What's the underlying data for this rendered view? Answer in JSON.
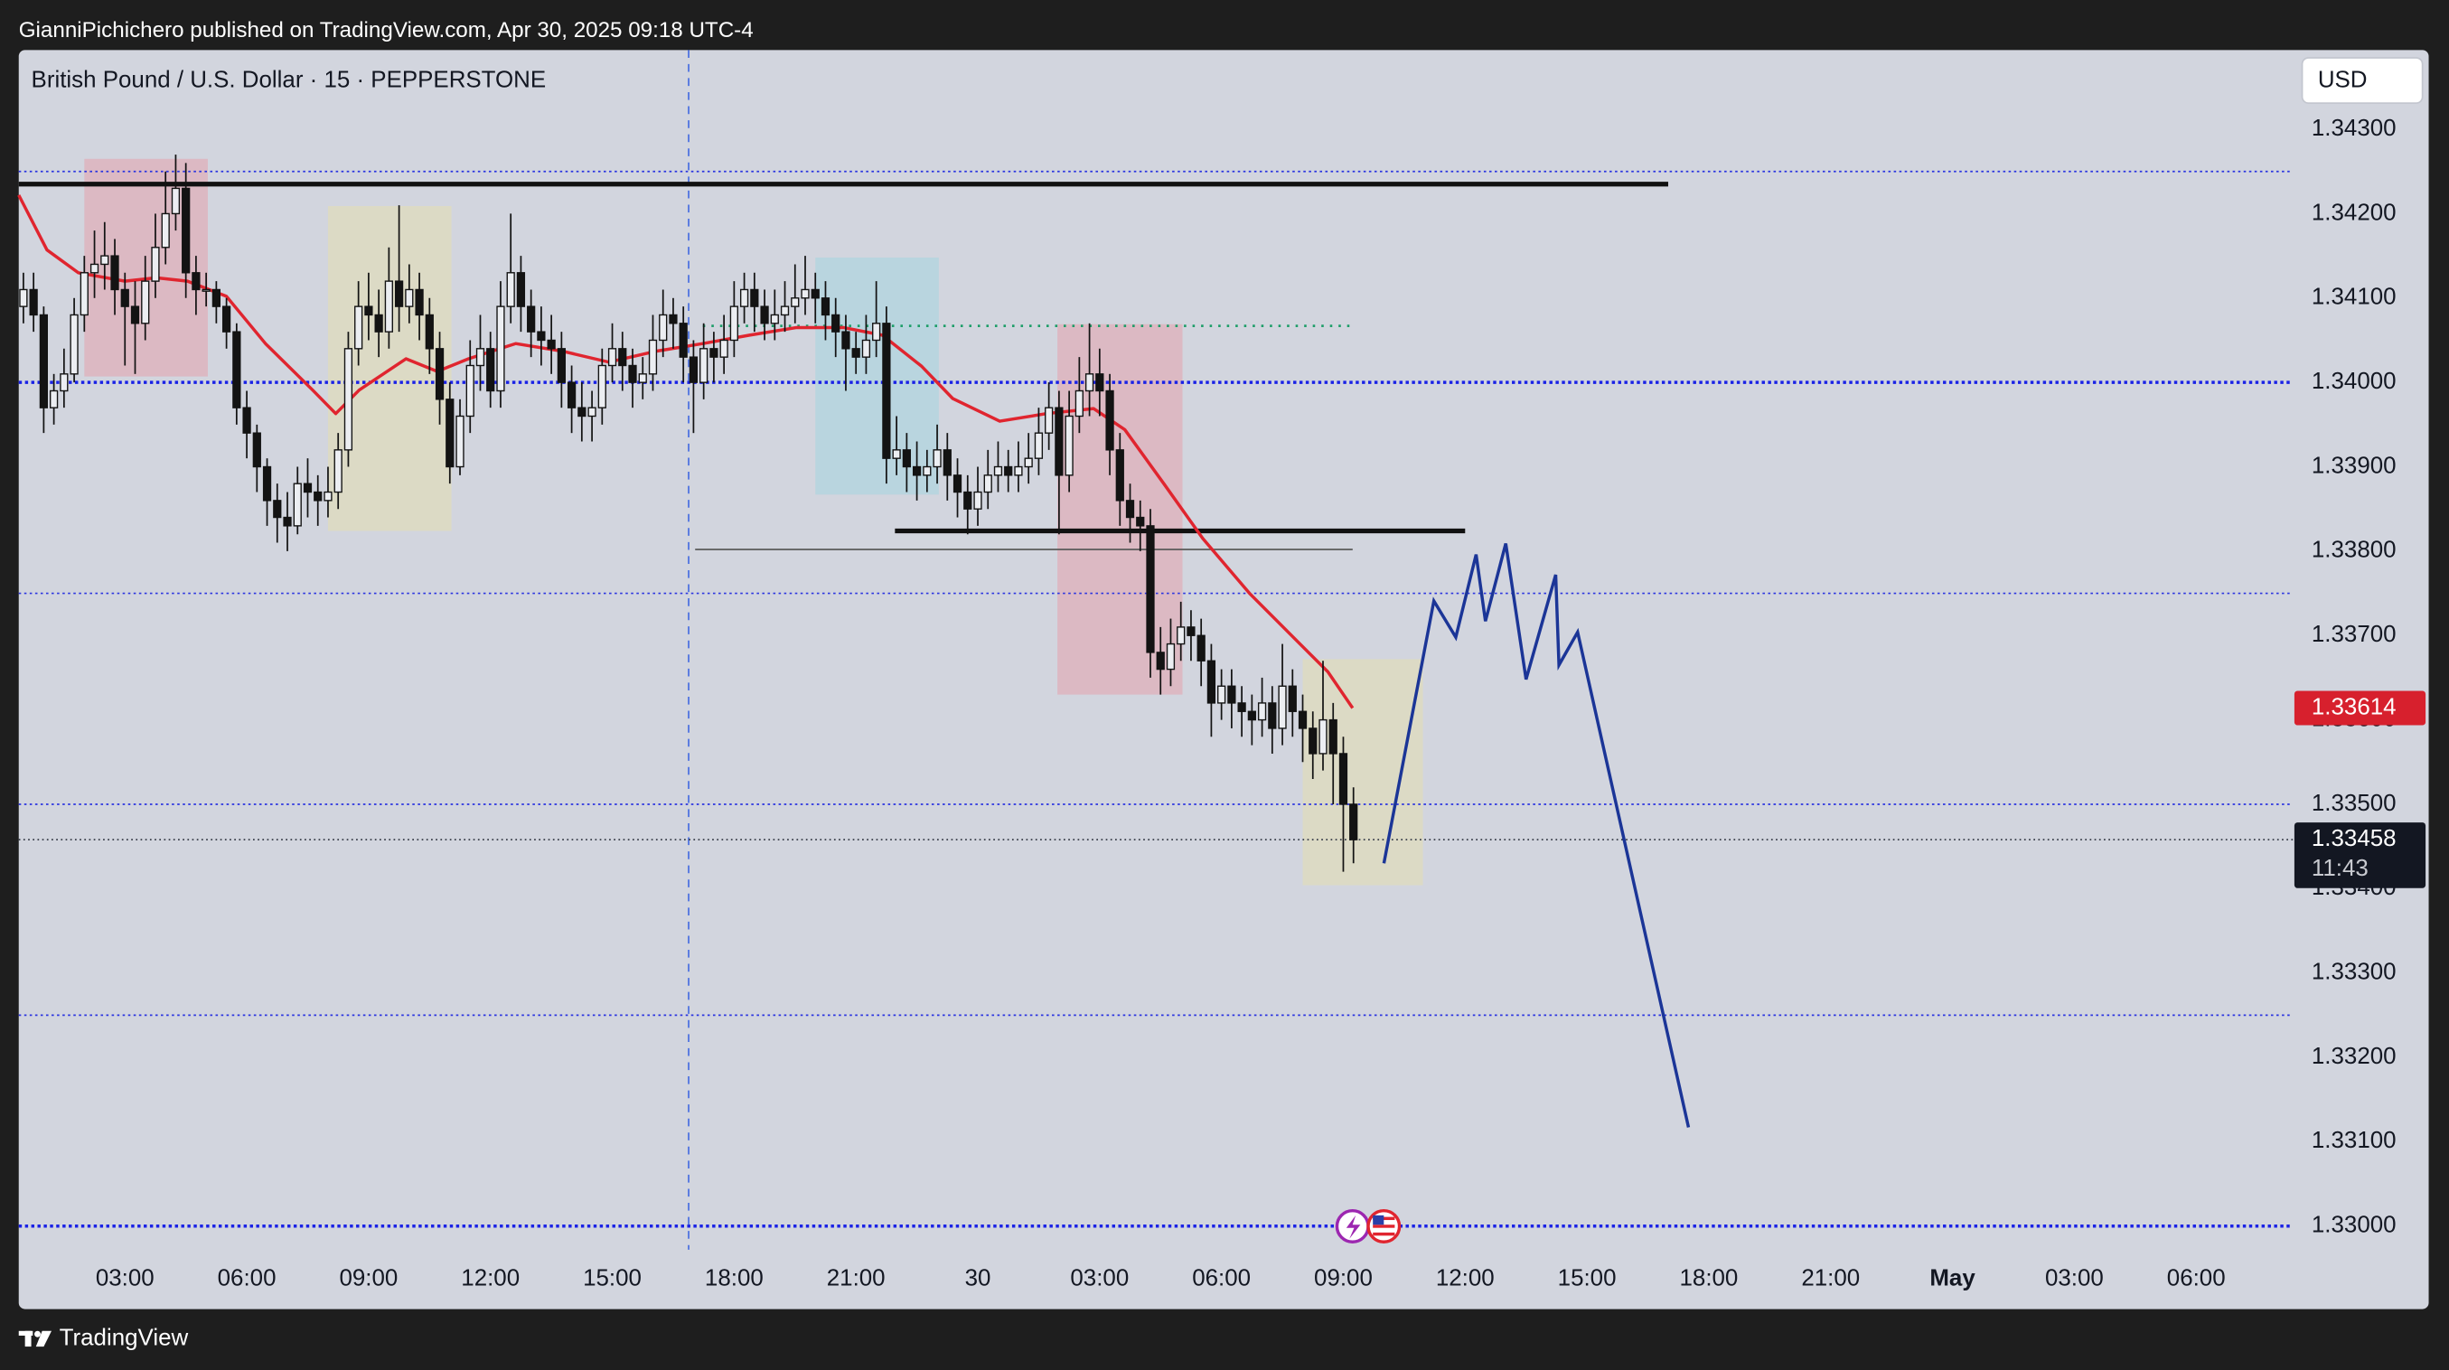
{
  "header": {
    "text": "GianniPichichero published on TradingView.com, Apr 30, 2025 09:18 UTC-4"
  },
  "footer": {
    "brand": "TradingView"
  },
  "chart_data": {
    "type": "candlestick",
    "title": "British Pound / U.S. Dollar · 15 · PEPPERSTONE",
    "currency": "USD",
    "countdown": "11:43",
    "xlim": [
      0.385,
      56.38
    ],
    "ylim": [
      1.32972,
      1.34394
    ],
    "grid": false,
    "xticks": [
      {
        "value": 3,
        "label": "03:00"
      },
      {
        "value": 6,
        "label": "06:00"
      },
      {
        "value": 9,
        "label": "09:00"
      },
      {
        "value": 12,
        "label": "12:00"
      },
      {
        "value": 15,
        "label": "15:00"
      },
      {
        "value": 18,
        "label": "18:00"
      },
      {
        "value": 21,
        "label": "21:00"
      },
      {
        "value": 24,
        "label": "30"
      },
      {
        "value": 27,
        "label": "03:00"
      },
      {
        "value": 30,
        "label": "06:00"
      },
      {
        "value": 33,
        "label": "09:00"
      },
      {
        "value": 36,
        "label": "12:00"
      },
      {
        "value": 39,
        "label": "15:00"
      },
      {
        "value": 42,
        "label": "18:00"
      },
      {
        "value": 45,
        "label": "21:00"
      },
      {
        "value": 48,
        "label": "May"
      },
      {
        "value": 51,
        "label": "03:00"
      },
      {
        "value": 54,
        "label": "06:00"
      }
    ],
    "yticks": [
      {
        "value": 1.33,
        "label": "1.33000"
      },
      {
        "value": 1.331,
        "label": "1.33100"
      },
      {
        "value": 1.332,
        "label": "1.33200"
      },
      {
        "value": 1.333,
        "label": "1.33300"
      },
      {
        "value": 1.334,
        "label": "1.33400"
      },
      {
        "value": 1.335,
        "label": "1.33500"
      },
      {
        "value": 1.336,
        "label": "1.33600"
      },
      {
        "value": 1.337,
        "label": "1.33700"
      },
      {
        "value": 1.338,
        "label": "1.33800"
      },
      {
        "value": 1.339,
        "label": "1.33900"
      },
      {
        "value": 1.34,
        "label": "1.34000"
      },
      {
        "value": 1.341,
        "label": "1.34100"
      },
      {
        "value": 1.342,
        "label": "1.34200"
      },
      {
        "value": 1.343,
        "label": "1.34300"
      }
    ],
    "up_color": "#eceef2",
    "down_color": "#131313",
    "x": [
      0.5,
      0.75,
      1,
      1.25,
      1.5,
      1.75,
      2,
      2.25,
      2.5,
      2.75,
      3,
      3.25,
      3.5,
      3.75,
      4,
      4.25,
      4.5,
      4.75,
      5,
      5.25,
      5.5,
      5.75,
      6,
      6.25,
      6.5,
      6.75,
      7,
      7.25,
      7.5,
      7.75,
      8,
      8.25,
      8.5,
      8.75,
      9,
      9.25,
      9.5,
      9.75,
      10,
      10.25,
      10.5,
      10.75,
      11,
      11.25,
      11.5,
      11.75,
      12,
      12.25,
      12.5,
      12.75,
      13,
      13.25,
      13.5,
      13.75,
      14,
      14.25,
      14.5,
      14.75,
      15,
      15.25,
      15.5,
      15.75,
      16,
      16.25,
      16.5,
      16.75,
      17,
      17.25,
      17.5,
      17.75,
      18,
      18.25,
      18.5,
      18.75,
      19,
      19.25,
      19.5,
      19.75,
      20,
      20.25,
      20.5,
      20.75,
      21,
      21.25,
      21.5,
      21.75,
      22,
      22.25,
      22.5,
      22.75,
      23,
      23.25,
      23.5,
      23.75,
      24,
      24.25,
      24.5,
      24.75,
      25,
      25.25,
      25.5,
      25.75,
      26,
      26.25,
      26.5,
      26.75,
      27,
      27.25,
      27.5,
      27.75,
      28,
      28.25,
      28.5,
      28.75,
      29,
      29.25,
      29.5,
      29.75,
      30,
      30.25,
      30.5,
      30.75,
      31,
      31.25,
      31.5,
      31.75,
      32,
      32.25,
      32.5,
      32.75,
      33,
      33.25
    ],
    "open": [
      1.3409,
      1.3411,
      1.3408,
      1.3397,
      1.3399,
      1.3401,
      1.3408,
      1.3413,
      1.3414,
      1.3415,
      1.3411,
      1.3409,
      1.3407,
      1.3412,
      1.3416,
      1.342,
      1.3423,
      1.3413,
      1.3411,
      1.3411,
      1.3409,
      1.3406,
      1.3397,
      1.3394,
      1.339,
      1.3386,
      1.3384,
      1.3383,
      1.3388,
      1.3387,
      1.3386,
      1.3387,
      1.3392,
      1.3404,
      1.3409,
      1.3408,
      1.3406,
      1.3412,
      1.3409,
      1.3411,
      1.3408,
      1.3404,
      1.3398,
      1.339,
      1.3396,
      1.3402,
      1.3404,
      1.3399,
      1.3409,
      1.3413,
      1.3409,
      1.3406,
      1.3405,
      1.3404,
      1.34,
      1.3397,
      1.3396,
      1.3397,
      1.3402,
      1.3404,
      1.3402,
      1.34,
      1.3401,
      1.3405,
      1.3408,
      1.3407,
      1.3403,
      1.34,
      1.3404,
      1.3403,
      1.3405,
      1.3409,
      1.3411,
      1.3409,
      1.3407,
      1.3408,
      1.3409,
      1.341,
      1.3411,
      1.341,
      1.3408,
      1.3406,
      1.3404,
      1.3403,
      1.3405,
      1.3407,
      1.3391,
      1.3392,
      1.339,
      1.3389,
      1.339,
      1.3392,
      1.3389,
      1.3387,
      1.3385,
      1.3387,
      1.3389,
      1.339,
      1.3389,
      1.339,
      1.3391,
      1.3394,
      1.3397,
      1.3389,
      1.3396,
      1.3399,
      1.3401,
      1.3399,
      1.3392,
      1.3386,
      1.3384,
      1.3383,
      1.3368,
      1.3366,
      1.3369,
      1.3371,
      1.337,
      1.3367,
      1.3362,
      1.3364,
      1.3362,
      1.3361,
      1.336,
      1.3362,
      1.3359,
      1.3364,
      1.3361,
      1.3359,
      1.3356,
      1.336,
      1.3356,
      1.335
    ],
    "high": [
      1.3413,
      1.3413,
      1.3409,
      1.3401,
      1.3404,
      1.341,
      1.3415,
      1.3418,
      1.3419,
      1.3417,
      1.3413,
      1.3412,
      1.3415,
      1.342,
      1.3425,
      1.3427,
      1.3426,
      1.3415,
      1.3413,
      1.3412,
      1.341,
      1.3407,
      1.3399,
      1.3395,
      1.3391,
      1.3388,
      1.3387,
      1.339,
      1.3391,
      1.3389,
      1.339,
      1.3394,
      1.3406,
      1.3412,
      1.3413,
      1.3411,
      1.3416,
      1.3421,
      1.3414,
      1.3413,
      1.341,
      1.3406,
      1.34,
      1.3398,
      1.3405,
      1.3408,
      1.3406,
      1.3412,
      1.342,
      1.3415,
      1.3411,
      1.3409,
      1.3408,
      1.3406,
      1.3402,
      1.34,
      1.3399,
      1.3404,
      1.3407,
      1.3406,
      1.3404,
      1.3403,
      1.3408,
      1.3411,
      1.341,
      1.3409,
      1.3405,
      1.3407,
      1.3406,
      1.3408,
      1.3412,
      1.3413,
      1.3413,
      1.3411,
      1.3411,
      1.3412,
      1.3414,
      1.3415,
      1.3413,
      1.3412,
      1.341,
      1.3408,
      1.3406,
      1.3408,
      1.3412,
      1.3409,
      1.3396,
      1.3394,
      1.3393,
      1.3392,
      1.3395,
      1.3394,
      1.3391,
      1.3389,
      1.339,
      1.3392,
      1.3393,
      1.3392,
      1.3393,
      1.3394,
      1.3397,
      1.34,
      1.3399,
      1.3399,
      1.3403,
      1.3407,
      1.3404,
      1.3401,
      1.3394,
      1.3388,
      1.3386,
      1.3385,
      1.3371,
      1.3372,
      1.3374,
      1.3373,
      1.3372,
      1.3369,
      1.3366,
      1.3366,
      1.3364,
      1.3363,
      1.3365,
      1.3364,
      1.3369,
      1.3366,
      1.3363,
      1.3361,
      1.3367,
      1.3362,
      1.3358,
      1.3352
    ],
    "low": [
      1.3407,
      1.3406,
      1.3394,
      1.3395,
      1.3397,
      1.34,
      1.3406,
      1.341,
      1.3411,
      1.3408,
      1.3402,
      1.3401,
      1.3405,
      1.341,
      1.3414,
      1.3418,
      1.341,
      1.3408,
      1.3409,
      1.3407,
      1.3404,
      1.3395,
      1.3391,
      1.3387,
      1.3383,
      1.3381,
      1.338,
      1.3382,
      1.3384,
      1.3383,
      1.3384,
      1.3385,
      1.339,
      1.3402,
      1.3405,
      1.3403,
      1.3404,
      1.3406,
      1.3407,
      1.3405,
      1.3401,
      1.3395,
      1.3388,
      1.3389,
      1.3394,
      1.3399,
      1.3397,
      1.3397,
      1.3407,
      1.3406,
      1.3403,
      1.3402,
      1.3401,
      1.3397,
      1.3394,
      1.3393,
      1.3393,
      1.3395,
      1.34,
      1.3399,
      1.3397,
      1.3398,
      1.3399,
      1.3403,
      1.3404,
      1.34,
      1.3394,
      1.3398,
      1.34,
      1.3401,
      1.3403,
      1.3407,
      1.3406,
      1.3405,
      1.3405,
      1.3406,
      1.3407,
      1.3408,
      1.3407,
      1.3405,
      1.3403,
      1.3399,
      1.3401,
      1.3401,
      1.3403,
      1.3388,
      1.3389,
      1.3387,
      1.3386,
      1.3387,
      1.3388,
      1.3386,
      1.3384,
      1.3382,
      1.3383,
      1.3385,
      1.3387,
      1.3387,
      1.3387,
      1.3388,
      1.3389,
      1.3392,
      1.3382,
      1.3387,
      1.3394,
      1.3396,
      1.3396,
      1.3389,
      1.3383,
      1.3381,
      1.338,
      1.3365,
      1.3363,
      1.3364,
      1.3367,
      1.3367,
      1.3364,
      1.3358,
      1.336,
      1.3359,
      1.3358,
      1.3357,
      1.3358,
      1.3356,
      1.3357,
      1.3358,
      1.3355,
      1.3353,
      1.3354,
      1.335,
      1.3342,
      1.3343
    ],
    "close": [
      1.3411,
      1.3408,
      1.3397,
      1.3399,
      1.3401,
      1.3408,
      1.3413,
      1.3414,
      1.3415,
      1.3411,
      1.3409,
      1.3407,
      1.3412,
      1.3416,
      1.342,
      1.3423,
      1.3413,
      1.3411,
      1.3411,
      1.3409,
      1.3406,
      1.3397,
      1.3394,
      1.339,
      1.3386,
      1.3384,
      1.3383,
      1.3388,
      1.3387,
      1.3386,
      1.3387,
      1.3392,
      1.3404,
      1.3409,
      1.3408,
      1.3406,
      1.3412,
      1.3409,
      1.3411,
      1.3408,
      1.3404,
      1.3398,
      1.339,
      1.3396,
      1.3402,
      1.3404,
      1.3399,
      1.3409,
      1.3413,
      1.3409,
      1.3406,
      1.3405,
      1.3404,
      1.34,
      1.3397,
      1.3396,
      1.3397,
      1.3402,
      1.3404,
      1.3402,
      1.34,
      1.3401,
      1.3405,
      1.3408,
      1.3407,
      1.3403,
      1.34,
      1.3404,
      1.3403,
      1.3405,
      1.3409,
      1.3411,
      1.3409,
      1.3407,
      1.3408,
      1.3409,
      1.341,
      1.3411,
      1.341,
      1.3408,
      1.3406,
      1.3404,
      1.3403,
      1.3405,
      1.3407,
      1.3391,
      1.3392,
      1.339,
      1.3389,
      1.339,
      1.3392,
      1.3389,
      1.3387,
      1.3385,
      1.3387,
      1.3389,
      1.339,
      1.3389,
      1.339,
      1.3391,
      1.3394,
      1.3397,
      1.3389,
      1.3396,
      1.3399,
      1.3401,
      1.3399,
      1.3392,
      1.3386,
      1.3384,
      1.3383,
      1.3368,
      1.3366,
      1.3369,
      1.3371,
      1.337,
      1.3367,
      1.3362,
      1.3364,
      1.3362,
      1.3361,
      1.336,
      1.3362,
      1.3359,
      1.3364,
      1.3361,
      1.3359,
      1.3356,
      1.336,
      1.3356,
      1.335,
      1.33458
    ],
    "ema": {
      "color": "#e0252f",
      "x": [
        0.385,
        1.08,
        1.85,
        3,
        3.77,
        4.54,
        5.5,
        6.46,
        7.62,
        8.19,
        8.77,
        9.92,
        10.69,
        11.46,
        12.62,
        13.77,
        14.92,
        16.08,
        17.23,
        18.38,
        19.54,
        20.69,
        21.65,
        22.62,
        23.38,
        24.54,
        25.69,
        26.85,
        27.62,
        28.58,
        29.54,
        30.69,
        31.85,
        32.62,
        33.23
      ],
      "values": [
        1.34222,
        1.34157,
        1.3413,
        1.3412,
        1.34124,
        1.3412,
        1.34102,
        1.34046,
        1.33991,
        1.33963,
        1.33991,
        1.34028,
        1.34013,
        1.34028,
        1.34046,
        1.34037,
        1.34024,
        1.34037,
        1.34046,
        1.34056,
        1.34065,
        1.34065,
        1.34056,
        1.34019,
        1.33981,
        1.33954,
        1.33963,
        1.33969,
        1.33944,
        1.3388,
        1.33815,
        1.3375,
        1.33694,
        1.33657,
        1.33614
      ]
    },
    "forecast": {
      "color": "#1b3597",
      "x": [
        34.0,
        35.23,
        35.77,
        36.27,
        36.5,
        37.0,
        37.5,
        38.23,
        38.31,
        38.77,
        41.5
      ],
      "values": [
        1.3343,
        1.33741,
        1.33698,
        1.33796,
        1.33717,
        1.33809,
        1.33648,
        1.33772,
        1.33665,
        1.33704,
        1.33117
      ]
    },
    "zones": [
      {
        "x": [
          2.0,
          5.04
        ],
        "values": [
          1.34265,
          1.34007
        ],
        "color": "#dcb9c3"
      },
      {
        "x": [
          8.0,
          11.04
        ],
        "values": [
          1.34209,
          1.33824
        ],
        "color": "#dcdac5"
      },
      {
        "x": [
          20.0,
          23.04
        ],
        "values": [
          1.34148,
          1.33867
        ],
        "color": "#b9d5df"
      },
      {
        "x": [
          25.96,
          29.04
        ],
        "values": [
          1.34069,
          1.3363
        ],
        "color": "#dcb9c3"
      },
      {
        "x": [
          32.0,
          34.96
        ],
        "values": [
          1.33672,
          1.33404
        ],
        "color": "#dcdac5"
      }
    ],
    "lines": [
      {
        "x": [
          0.385,
          41.0
        ],
        "values": [
          1.34235,
          1.34235
        ],
        "color": "#111111",
        "style": "thick"
      },
      {
        "x": [
          21.96,
          36.0
        ],
        "values": [
          1.33824,
          1.33824
        ],
        "color": "#111111",
        "style": "thick"
      },
      {
        "x": [
          17.04,
          33.23
        ],
        "values": [
          1.33802,
          1.33802
        ],
        "color": "#5a5a5a",
        "style": "thin"
      },
      {
        "x": [
          17.23,
          33.3
        ],
        "values": [
          1.34067,
          1.34067
        ],
        "color": "#1f9e6a",
        "style": "dotted"
      }
    ],
    "levels": {
      "color": "#2b35e0",
      "values": [
        1.3425,
        1.3375,
        1.335,
        1.3325
      ]
    },
    "key_levels": {
      "color": "#1a22e6",
      "values": [
        1.34,
        1.33
      ]
    },
    "session_line": {
      "x": 16.88,
      "color": "#4a6fe0"
    },
    "ema_tag_color": "#d7202d",
    "price_tag_color": "#131722"
  }
}
